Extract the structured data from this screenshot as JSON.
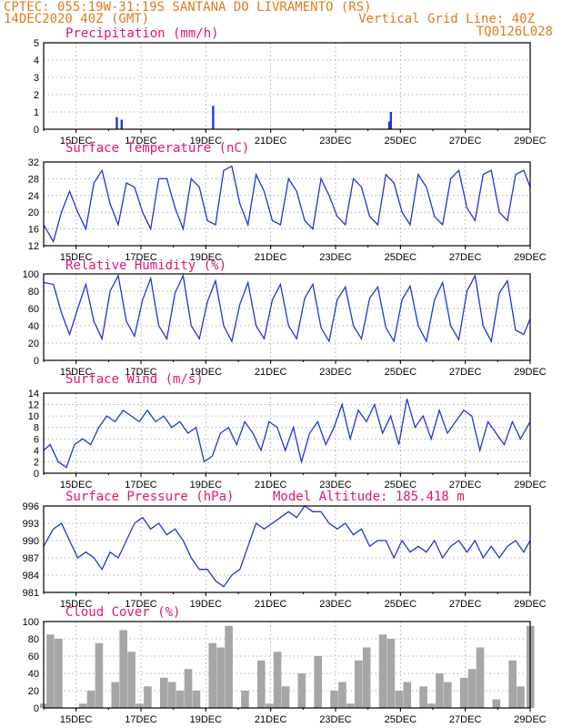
{
  "header": {
    "line1_left": "CPTEC:  055:19W-31:19S  SANTANA DO LIVRAMENTO (RS)",
    "line2_left": "14DEC2020 40Z (GMT)",
    "line2_right": "Vertical Grid Line: 40Z",
    "line3_right": "TQ0126L028"
  },
  "colors": {
    "header": "#e07a1e",
    "title": "#e0157a",
    "line": "#1f36d6",
    "bar": "#2035e0",
    "cloud": "#a6a6a6",
    "grid": "#9a9a9a"
  },
  "x_axis": {
    "range_days": [
      14,
      29
    ],
    "ticks": [
      {
        "day": 15,
        "label": "15DEC"
      },
      {
        "day": 17,
        "label": "17DEC"
      },
      {
        "day": 19,
        "label": "19DEC"
      },
      {
        "day": 21,
        "label": "21DEC"
      },
      {
        "day": 23,
        "label": "23DEC"
      },
      {
        "day": 25,
        "label": "25DEC"
      },
      {
        "day": 27,
        "label": "27DEC"
      },
      {
        "day": 29,
        "label": "29DEC"
      }
    ]
  },
  "chart_data": [
    {
      "type": "bar",
      "title": "Precipitation (mm/h)",
      "ylim": [
        0,
        5
      ],
      "yticks": [
        0,
        1,
        2,
        3,
        4,
        5
      ],
      "x": [
        16.25,
        16.4,
        19.22,
        24.65,
        24.7
      ],
      "values": [
        0.7,
        0.55,
        1.35,
        0.45,
        1.0
      ]
    },
    {
      "type": "line",
      "title": "Surface Temperature (nC)",
      "ylim": [
        12,
        32
      ],
      "yticks": [
        12,
        16,
        20,
        24,
        28,
        32
      ],
      "x": [
        14.0,
        14.3,
        14.55,
        14.8,
        15.05,
        15.3,
        15.55,
        15.8,
        16.05,
        16.3,
        16.55,
        16.8,
        17.05,
        17.3,
        17.55,
        17.8,
        18.05,
        18.3,
        18.55,
        18.8,
        19.05,
        19.3,
        19.55,
        19.8,
        20.05,
        20.3,
        20.55,
        20.8,
        21.05,
        21.3,
        21.55,
        21.8,
        22.05,
        22.3,
        22.55,
        22.8,
        23.05,
        23.3,
        23.55,
        23.8,
        24.05,
        24.3,
        24.55,
        24.8,
        25.05,
        25.3,
        25.55,
        25.8,
        26.05,
        26.3,
        26.55,
        26.8,
        27.05,
        27.3,
        27.55,
        27.8,
        28.05,
        28.3,
        28.55,
        28.8,
        29.0
      ],
      "values": [
        17,
        13,
        20,
        25,
        20,
        16,
        27,
        30,
        22,
        17,
        27,
        26,
        20,
        16,
        28,
        28,
        21,
        16,
        28,
        26,
        18,
        17,
        30,
        31,
        22,
        17,
        29,
        25,
        18,
        17,
        28,
        25,
        18,
        16,
        28,
        24,
        19,
        17,
        28,
        26,
        19,
        17,
        29,
        27,
        20,
        17,
        29,
        26,
        19,
        17,
        28,
        30,
        21,
        18,
        29,
        30,
        20,
        18,
        29,
        30,
        26
      ]
    },
    {
      "type": "line",
      "title": "Relative Humidity (%)",
      "ylim": [
        0,
        100
      ],
      "yticks": [
        0,
        20,
        40,
        60,
        80,
        100
      ],
      "x": [
        14.0,
        14.3,
        14.55,
        14.8,
        15.05,
        15.3,
        15.55,
        15.8,
        16.05,
        16.3,
        16.55,
        16.8,
        17.05,
        17.3,
        17.55,
        17.8,
        18.05,
        18.3,
        18.55,
        18.8,
        19.05,
        19.3,
        19.55,
        19.8,
        20.05,
        20.3,
        20.55,
        20.8,
        21.05,
        21.3,
        21.55,
        21.8,
        22.05,
        22.3,
        22.55,
        22.8,
        23.05,
        23.3,
        23.55,
        23.8,
        24.05,
        24.3,
        24.55,
        24.8,
        25.05,
        25.3,
        25.55,
        25.8,
        26.05,
        26.3,
        26.55,
        26.8,
        27.05,
        27.3,
        27.55,
        27.8,
        28.05,
        28.3,
        28.55,
        28.8,
        29.0
      ],
      "values": [
        90,
        88,
        55,
        30,
        60,
        88,
        45,
        25,
        80,
        98,
        45,
        28,
        70,
        95,
        40,
        25,
        78,
        98,
        40,
        25,
        68,
        92,
        40,
        22,
        65,
        90,
        40,
        25,
        70,
        88,
        40,
        25,
        72,
        88,
        38,
        22,
        70,
        85,
        40,
        25,
        72,
        85,
        38,
        22,
        70,
        86,
        40,
        22,
        70,
        90,
        40,
        24,
        80,
        98,
        40,
        22,
        78,
        92,
        35,
        30,
        48
      ]
    },
    {
      "type": "line",
      "title": "Surface Wind (m/s)",
      "ylim": [
        0,
        14
      ],
      "yticks": [
        0,
        2,
        4,
        6,
        8,
        10,
        12,
        14
      ],
      "x": [
        14.0,
        14.2,
        14.45,
        14.7,
        14.95,
        15.2,
        15.45,
        15.7,
        15.95,
        16.2,
        16.45,
        16.7,
        16.95,
        17.2,
        17.45,
        17.7,
        17.95,
        18.2,
        18.45,
        18.7,
        18.95,
        19.2,
        19.45,
        19.7,
        19.95,
        20.2,
        20.45,
        20.7,
        20.95,
        21.2,
        21.45,
        21.7,
        21.95,
        22.2,
        22.45,
        22.7,
        22.95,
        23.2,
        23.45,
        23.7,
        23.95,
        24.2,
        24.45,
        24.7,
        24.95,
        25.2,
        25.45,
        25.7,
        25.95,
        26.2,
        26.45,
        26.7,
        26.95,
        27.2,
        27.45,
        27.7,
        27.95,
        28.2,
        28.45,
        28.7,
        29.0
      ],
      "values": [
        4,
        5,
        2,
        1,
        5,
        6,
        5,
        8,
        10,
        9,
        11,
        10,
        9,
        11,
        9,
        10,
        8,
        9,
        7,
        8,
        2,
        3,
        7,
        8,
        5,
        9,
        7,
        4,
        9,
        8,
        4,
        8,
        2,
        7,
        9,
        5,
        8,
        12,
        6,
        11,
        9,
        12,
        7,
        10,
        5,
        13,
        8,
        10,
        6,
        11,
        7,
        9,
        11,
        10,
        4,
        9,
        7,
        5,
        9,
        6,
        9
      ]
    },
    {
      "type": "line",
      "title": "Surface Pressure (hPa)",
      "annotation": "Model Altitude: 185.418 m",
      "ylim": [
        981,
        996
      ],
      "yticks": [
        981,
        984,
        987,
        990,
        993,
        996
      ],
      "x": [
        14.0,
        14.3,
        14.55,
        14.8,
        15.05,
        15.3,
        15.55,
        15.8,
        16.05,
        16.3,
        16.55,
        16.8,
        17.05,
        17.3,
        17.55,
        17.8,
        18.05,
        18.3,
        18.55,
        18.8,
        19.05,
        19.3,
        19.55,
        19.8,
        20.05,
        20.3,
        20.55,
        20.8,
        21.05,
        21.3,
        21.55,
        21.8,
        22.05,
        22.3,
        22.55,
        22.8,
        23.05,
        23.3,
        23.55,
        23.8,
        24.05,
        24.3,
        24.55,
        24.8,
        25.05,
        25.3,
        25.55,
        25.8,
        26.05,
        26.3,
        26.55,
        26.8,
        27.05,
        27.3,
        27.55,
        27.8,
        28.05,
        28.3,
        28.55,
        28.8,
        29.0
      ],
      "values": [
        989,
        992,
        993,
        990,
        987,
        988,
        987,
        985,
        988,
        987,
        990,
        993,
        994,
        992,
        993,
        991,
        992,
        990,
        987,
        985,
        985,
        983,
        982,
        984,
        985,
        989,
        993,
        992,
        993,
        994,
        995,
        994,
        996,
        995,
        995,
        993,
        992,
        993,
        991,
        992,
        989,
        990,
        990,
        987,
        990,
        988,
        989,
        988,
        990,
        987,
        989,
        990,
        988,
        990,
        987,
        989,
        987,
        989,
        990,
        988,
        990
      ]
    },
    {
      "type": "area",
      "title": "Cloud Cover (%)",
      "ylim": [
        0,
        100
      ],
      "yticks": [
        0,
        20,
        40,
        60,
        80,
        100
      ],
      "x": [
        14.0,
        14.2,
        14.45,
        14.7,
        14.95,
        15.2,
        15.45,
        15.7,
        15.95,
        16.2,
        16.45,
        16.7,
        16.95,
        17.2,
        17.45,
        17.7,
        17.95,
        18.2,
        18.45,
        18.7,
        18.95,
        19.2,
        19.45,
        19.7,
        19.95,
        20.2,
        20.45,
        20.7,
        20.95,
        21.2,
        21.45,
        21.7,
        21.95,
        22.2,
        22.45,
        22.7,
        22.95,
        23.2,
        23.45,
        23.7,
        23.95,
        24.2,
        24.45,
        24.7,
        24.95,
        25.2,
        25.45,
        25.7,
        25.95,
        26.2,
        26.45,
        26.7,
        26.95,
        27.2,
        27.45,
        27.7,
        27.95,
        28.2,
        28.45,
        28.7,
        29.0
      ],
      "values": [
        5,
        85,
        80,
        0,
        0,
        5,
        20,
        75,
        0,
        30,
        90,
        65,
        5,
        25,
        0,
        35,
        30,
        20,
        45,
        20,
        0,
        75,
        70,
        95,
        0,
        20,
        0,
        55,
        5,
        65,
        25,
        0,
        40,
        0,
        60,
        0,
        20,
        30,
        5,
        55,
        70,
        0,
        85,
        80,
        20,
        30,
        0,
        25,
        5,
        40,
        30,
        0,
        35,
        45,
        70,
        0,
        10,
        0,
        55,
        25,
        95
      ]
    }
  ],
  "wind_vectors_note": ""
}
